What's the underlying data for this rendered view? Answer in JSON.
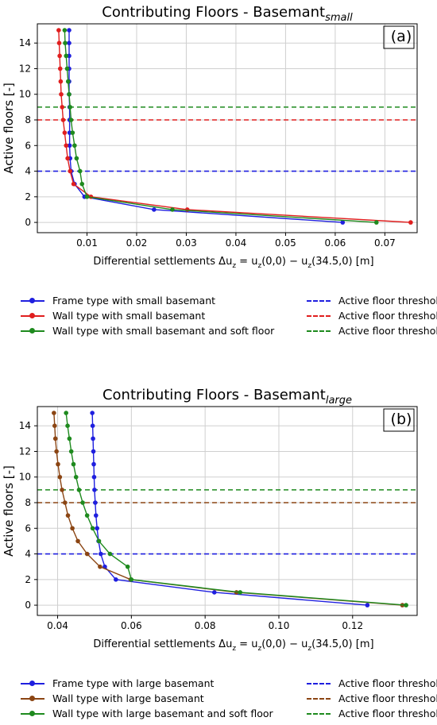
{
  "chart_data": [
    {
      "type": "line",
      "title": "Contributing Floors - Basemant",
      "title_subscript": "small",
      "panel_label": "(a)",
      "xlabel": "Differential settlements Δu",
      "xlabel_sub": "z",
      "xlabel_rest": " = u",
      "xlabel_sub2": "z",
      "xlabel_tail": "(0,0) − u",
      "xlabel_sub3": "z",
      "xlabel_end": "(34.5,0) [m]",
      "ylabel": "Active floors [-]",
      "xlim": [
        0.0,
        0.0765
      ],
      "ylim": [
        -0.8,
        15.5
      ],
      "xticks": [
        0.01,
        0.02,
        0.03,
        0.04,
        0.05,
        0.06,
        0.07
      ],
      "xtick_labels": [
        "0.01",
        "0.02",
        "0.03",
        "0.04",
        "0.05",
        "0.06",
        "0.07"
      ],
      "yticks": [
        0,
        2,
        4,
        6,
        8,
        10,
        12,
        14
      ],
      "ytick_labels": [
        "0",
        "2",
        "4",
        "6",
        "8",
        "10",
        "12",
        "14"
      ],
      "grid": true,
      "series": [
        {
          "name": "Frame type with small basemant",
          "color": "#1f1fdf",
          "x": [
            0.0615,
            0.0235,
            0.0095,
            0.0075,
            0.0068,
            0.0066,
            0.0065,
            0.0065,
            0.0065,
            0.0065,
            0.0064,
            0.0064,
            0.0064,
            0.0064,
            0.0064,
            0.0064
          ],
          "y": [
            0,
            1,
            2,
            3,
            4,
            5,
            6,
            7,
            8,
            9,
            10,
            11,
            12,
            13,
            14,
            15
          ]
        },
        {
          "name": "Wall type with small basemant",
          "color": "#e01e1e",
          "x": [
            0.0752,
            0.0302,
            0.0108,
            0.0073,
            0.0066,
            0.0061,
            0.0058,
            0.0055,
            0.0052,
            0.005,
            0.0048,
            0.0047,
            0.0046,
            0.0045,
            0.0044,
            0.0043
          ],
          "y": [
            0,
            1,
            2,
            3,
            4,
            5,
            6,
            7,
            8,
            9,
            10,
            11,
            12,
            13,
            14,
            15
          ]
        },
        {
          "name": "Wall type with small basemant and soft floor",
          "color": "#1e8a1e",
          "x": [
            0.0683,
            0.0272,
            0.01,
            0.009,
            0.0086,
            0.0079,
            0.0075,
            0.0071,
            0.0068,
            0.0066,
            0.0064,
            0.0062,
            0.006,
            0.0058,
            0.0056,
            0.0055
          ],
          "y": [
            0,
            1,
            2,
            3,
            4,
            5,
            6,
            7,
            8,
            9,
            10,
            11,
            12,
            13,
            14,
            15
          ]
        }
      ],
      "thresholds": [
        {
          "name": "Active floor threshold",
          "color": "#1f1fdf",
          "y": 4
        },
        {
          "name": "Active floor threshold",
          "color": "#e01e1e",
          "y": 8
        },
        {
          "name": "Active floor threshold",
          "color": "#1e8a1e",
          "y": 9
        }
      ]
    },
    {
      "type": "line",
      "title": "Contributing Floors - Basemant",
      "title_subscript": "large",
      "panel_label": "(b)",
      "xlabel": "Differential settlements Δu",
      "xlabel_sub": "z",
      "xlabel_rest": " = u",
      "xlabel_sub2": "z",
      "xlabel_tail": "(0,0) − u",
      "xlabel_sub3": "z",
      "xlabel_end": "(34.5,0) [m]",
      "ylabel": "Active floors [-]",
      "xlim": [
        0.0345,
        0.1375
      ],
      "ylim": [
        -0.8,
        15.5
      ],
      "xticks": [
        0.04,
        0.06,
        0.08,
        0.1,
        0.12
      ],
      "xtick_labels": [
        "0.04",
        "0.06",
        "0.08",
        "0.10",
        "0.12"
      ],
      "yticks": [
        0,
        2,
        4,
        6,
        8,
        10,
        12,
        14
      ],
      "ytick_labels": [
        "0",
        "2",
        "4",
        "6",
        "8",
        "10",
        "12",
        "14"
      ],
      "grid": true,
      "series": [
        {
          "name": "Frame type with large basemant",
          "color": "#1f1fdf",
          "x": [
            0.124,
            0.0825,
            0.0558,
            0.0528,
            0.0517,
            0.0511,
            0.0507,
            0.0504,
            0.0502,
            0.05,
            0.0499,
            0.0498,
            0.0497,
            0.0496,
            0.0495,
            0.0494
          ],
          "y": [
            0,
            1,
            2,
            3,
            4,
            5,
            6,
            7,
            8,
            9,
            10,
            11,
            12,
            13,
            14,
            15
          ]
        },
        {
          "name": "Wall type with large basemant",
          "color": "#8b4513",
          "x": [
            0.1335,
            0.0885,
            0.0598,
            0.0515,
            0.048,
            0.0455,
            0.044,
            0.0428,
            0.042,
            0.0412,
            0.0406,
            0.0401,
            0.0397,
            0.0394,
            0.0392,
            0.039
          ],
          "y": [
            0,
            1,
            2,
            3,
            4,
            5,
            6,
            7,
            8,
            9,
            10,
            11,
            12,
            13,
            14,
            15
          ]
        },
        {
          "name": "Wall type with large basemant and soft floor",
          "color": "#1e8a1e",
          "x": [
            0.1345,
            0.0895,
            0.06,
            0.059,
            0.0542,
            0.0512,
            0.0495,
            0.048,
            0.0468,
            0.0458,
            0.045,
            0.0443,
            0.0437,
            0.0432,
            0.0427,
            0.0423
          ],
          "y": [
            0,
            1,
            2,
            3,
            4,
            5,
            6,
            7,
            8,
            9,
            10,
            11,
            12,
            13,
            14,
            15
          ]
        }
      ],
      "thresholds": [
        {
          "name": "Active floor threshold",
          "color": "#1f1fdf",
          "y": 4
        },
        {
          "name": "Active floor threshold",
          "color": "#8b4513",
          "y": 8
        },
        {
          "name": "Active floor threshold",
          "color": "#1e8a1e",
          "y": 9
        }
      ]
    }
  ]
}
